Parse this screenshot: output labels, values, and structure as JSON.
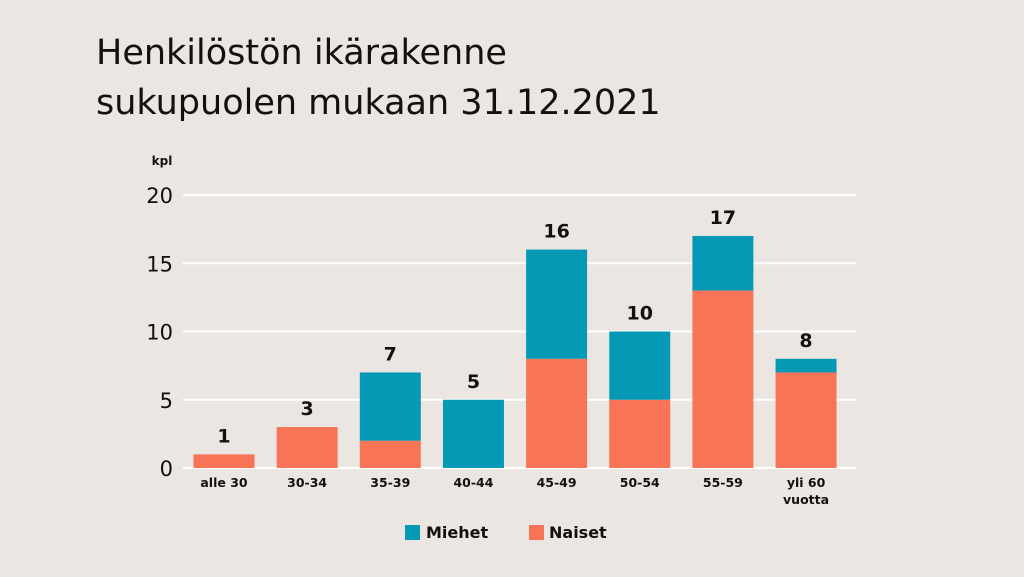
{
  "title_lines": [
    "Henkilöstön ikärakenne",
    "sukupuolen mukaan 31.12.2021"
  ],
  "chart_data": {
    "type": "bar",
    "stacked": true,
    "title": "Henkilöstön ikärakenne sukupuolen mukaan 31.12.2021",
    "ylabel": "kpl",
    "xlabel": "",
    "ylim": [
      0,
      20
    ],
    "yticks": [
      0,
      5,
      10,
      15,
      20
    ],
    "grid": true,
    "legend_position": "bottom",
    "categories": [
      "alle 30",
      "30-34",
      "35-39",
      "40-44",
      "45-49",
      "50-54",
      "55-59",
      "yli 60 vuotta"
    ],
    "category_lines": [
      [
        "alle 30"
      ],
      [
        "30-34"
      ],
      [
        "35-39"
      ],
      [
        "40-44"
      ],
      [
        "45-49"
      ],
      [
        "50-54"
      ],
      [
        "55-59"
      ],
      [
        "yli 60",
        "vuotta"
      ]
    ],
    "series": [
      {
        "name": "Naiset",
        "color": "#f77556",
        "values": [
          1,
          3,
          2,
          0,
          8,
          5,
          13,
          7
        ]
      },
      {
        "name": "Miehet",
        "color": "#0499b5",
        "values": [
          0,
          0,
          5,
          5,
          8,
          5,
          4,
          1
        ]
      }
    ],
    "totals": [
      1,
      3,
      7,
      5,
      16,
      10,
      17,
      8
    ],
    "legend_order": [
      "Miehet",
      "Naiset"
    ]
  }
}
